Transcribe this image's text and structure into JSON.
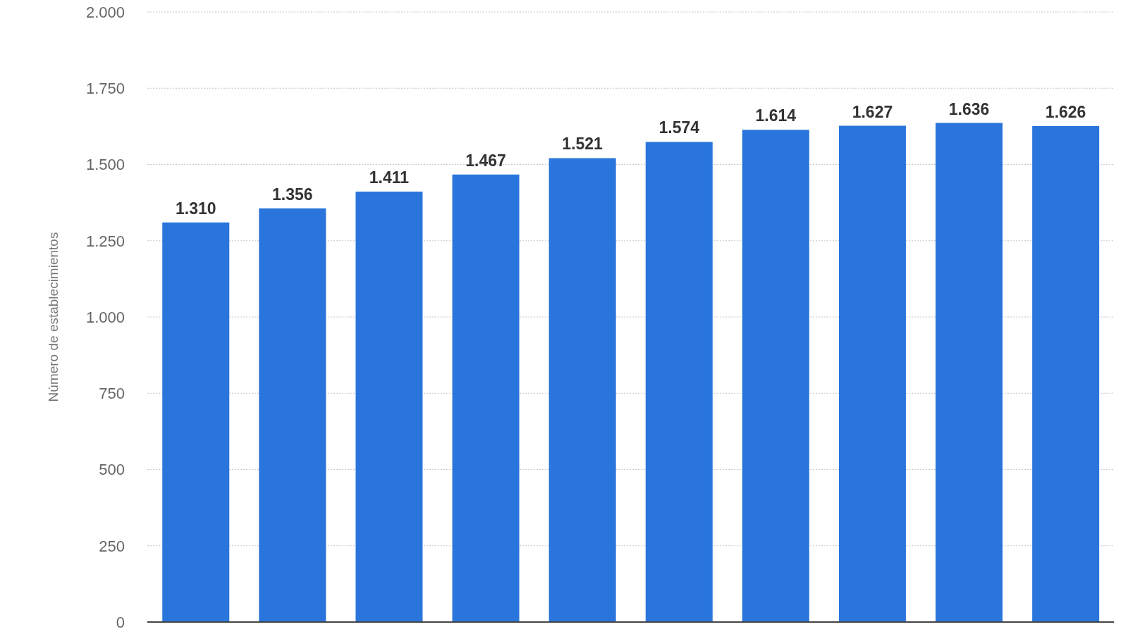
{
  "chart_data": {
    "type": "bar",
    "ylabel": "Número de establecimientos",
    "categories": [
      null,
      null,
      null,
      null,
      null,
      null,
      null,
      null,
      null,
      null
    ],
    "values": [
      1310,
      1356,
      1411,
      1467,
      1521,
      1574,
      1614,
      1627,
      1636,
      1626
    ],
    "value_labels": [
      "1.310",
      "1.356",
      "1.411",
      "1.467",
      "1.521",
      "1.574",
      "1.614",
      "1.627",
      "1.636",
      "1.626"
    ],
    "color": "#2a75db",
    "ylim": [
      0,
      2000
    ],
    "yticks": [
      0,
      250,
      500,
      750,
      {
        "value": 1000,
        "label": "1.000"
      },
      {
        "value": 1250,
        "label": "1.250"
      },
      {
        "value": 1500,
        "label": "1.500"
      },
      {
        "value": 1750,
        "label": "1.750"
      },
      {
        "value": 2000,
        "label": "2.000"
      }
    ],
    "grid": "y",
    "tick_labels": "y"
  }
}
